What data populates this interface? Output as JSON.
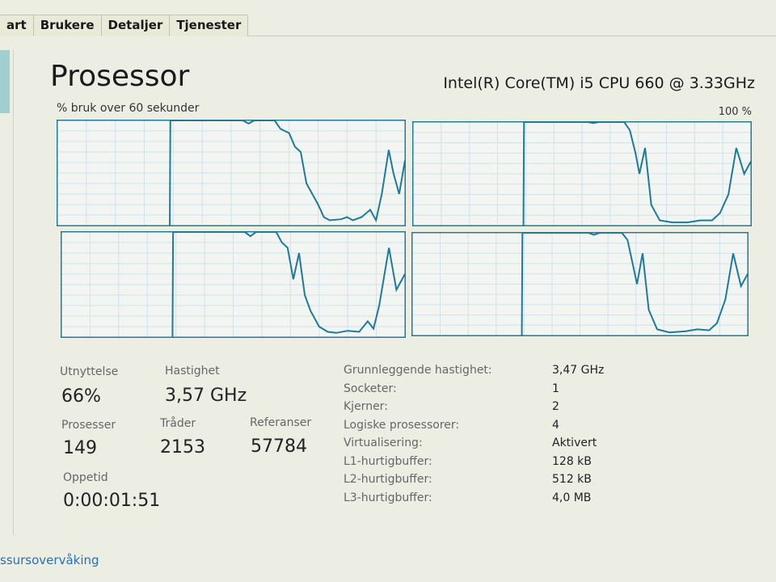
{
  "tabs": [
    {
      "label": "art"
    },
    {
      "label": "Brukere"
    },
    {
      "label": "Detaljer"
    },
    {
      "label": "Tjenester"
    }
  ],
  "header": {
    "title": "Prosessor",
    "cpu_name": "Intel(R) Core(TM) i5 CPU 660 @ 3.33GHz",
    "graph_caption": "% bruk over 60 sekunder",
    "graph_max": "100 %"
  },
  "colors": {
    "graph_line": "#1f7a9a",
    "graph_grid": "#cfe3ea",
    "link": "#2a6fb0"
  },
  "chart_data": {
    "type": "line",
    "x_unit": "seconds",
    "xlim": [
      0,
      60
    ],
    "ylim": [
      0,
      100
    ],
    "grid": true,
    "series": [
      {
        "points": [
          [
            19.4,
            0
          ],
          [
            19.5,
            100
          ],
          [
            32,
            100
          ],
          [
            33,
            97
          ],
          [
            34,
            100
          ],
          [
            37.5,
            100
          ],
          [
            38.5,
            92
          ],
          [
            40,
            88
          ],
          [
            41,
            75
          ],
          [
            42,
            70
          ],
          [
            43,
            40
          ],
          [
            44,
            30
          ],
          [
            45,
            20
          ],
          [
            46,
            8
          ],
          [
            47,
            5
          ],
          [
            49,
            6
          ],
          [
            50,
            8
          ],
          [
            51,
            5
          ],
          [
            52.5,
            8
          ],
          [
            54,
            15
          ],
          [
            55,
            5
          ],
          [
            56,
            30
          ],
          [
            57.2,
            72
          ],
          [
            58,
            50
          ],
          [
            59,
            30
          ],
          [
            60,
            62
          ]
        ]
      },
      {
        "points": [
          [
            19.6,
            0
          ],
          [
            19.7,
            100
          ],
          [
            31,
            100
          ],
          [
            32,
            99
          ],
          [
            33,
            100
          ],
          [
            37.5,
            100
          ],
          [
            38.5,
            92
          ],
          [
            39.5,
            70
          ],
          [
            40.2,
            50
          ],
          [
            41.2,
            75
          ],
          [
            42.3,
            20
          ],
          [
            43.8,
            5
          ],
          [
            46,
            3
          ],
          [
            48.8,
            3
          ],
          [
            51,
            5
          ],
          [
            53.1,
            5
          ],
          [
            54.5,
            12
          ],
          [
            56,
            30
          ],
          [
            57.4,
            75
          ],
          [
            58.8,
            50
          ],
          [
            60,
            62
          ]
        ]
      },
      {
        "points": [
          [
            19.4,
            0
          ],
          [
            19.5,
            100
          ],
          [
            32,
            100
          ],
          [
            33,
            96
          ],
          [
            34,
            100
          ],
          [
            37.5,
            100
          ],
          [
            38.5,
            90
          ],
          [
            39.5,
            85
          ],
          [
            40.5,
            55
          ],
          [
            41.5,
            80
          ],
          [
            42.5,
            40
          ],
          [
            43.5,
            25
          ],
          [
            45,
            10
          ],
          [
            46.5,
            5
          ],
          [
            48,
            4
          ],
          [
            50,
            6
          ],
          [
            52,
            5
          ],
          [
            53.5,
            15
          ],
          [
            54.5,
            8
          ],
          [
            55.5,
            30
          ],
          [
            57.2,
            85
          ],
          [
            58.5,
            45
          ],
          [
            60,
            60
          ]
        ]
      },
      {
        "points": [
          [
            19.6,
            0
          ],
          [
            19.7,
            100
          ],
          [
            31.5,
            100
          ],
          [
            32.5,
            98
          ],
          [
            33.5,
            100
          ],
          [
            37.5,
            100
          ],
          [
            38.5,
            93
          ],
          [
            39.5,
            68
          ],
          [
            40.2,
            50
          ],
          [
            41.2,
            80
          ],
          [
            42.3,
            25
          ],
          [
            43.8,
            6
          ],
          [
            46,
            3
          ],
          [
            48.8,
            4
          ],
          [
            51,
            6
          ],
          [
            53.1,
            5
          ],
          [
            54.5,
            12
          ],
          [
            56,
            35
          ],
          [
            57.4,
            80
          ],
          [
            58.8,
            48
          ],
          [
            60,
            60
          ]
        ]
      }
    ]
  },
  "stats": {
    "utilization": {
      "label": "Utnyttelse",
      "value": "66%"
    },
    "speed": {
      "label": "Hastighet",
      "value": "3,57 GHz"
    },
    "processes": {
      "label": "Prosesser",
      "value": "149"
    },
    "threads": {
      "label": "Tråder",
      "value": "2153"
    },
    "handles": {
      "label": "Referanser",
      "value": "57784"
    },
    "uptime": {
      "label": "Oppetid",
      "value": "0:00:01:51"
    }
  },
  "info": [
    {
      "key": "Grunnleggende hastighet:",
      "value": "3,47 GHz"
    },
    {
      "key": "Socketer:",
      "value": "1"
    },
    {
      "key": "Kjerner:",
      "value": "2"
    },
    {
      "key": "Logiske prosessorer:",
      "value": "4"
    },
    {
      "key": "Virtualisering:",
      "value": "Aktivert"
    },
    {
      "key": "L1-hurtigbuffer:",
      "value": "128 kB"
    },
    {
      "key": "L2-hurtigbuffer:",
      "value": "512 kB"
    },
    {
      "key": "L3-hurtigbuffer:",
      "value": "4,0 MB"
    }
  ],
  "footer": {
    "link": "ssursovervåking"
  }
}
